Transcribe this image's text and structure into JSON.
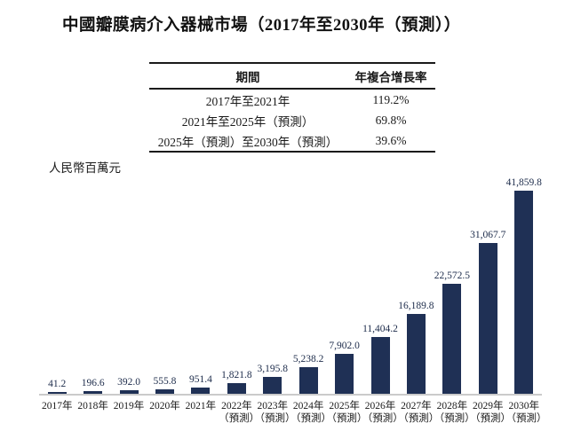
{
  "title": "中國瓣膜病介入器械市場（2017年至2030年（預測））",
  "cagr_table": {
    "headers": {
      "period": "期間",
      "cagr": "年複合增長率"
    },
    "rows": [
      {
        "period": "2017年至2021年",
        "cagr": "119.2%"
      },
      {
        "period": "2021年至2025年（預測）",
        "cagr": "69.8%"
      },
      {
        "period": "2025年（預測）至2030年（預測）",
        "cagr": "39.6%"
      }
    ]
  },
  "chart_data": {
    "type": "bar",
    "title": "中國瓣膜病介入器械市場（2017年至2030年（預測））",
    "ylabel": "人民幣百萬元",
    "ylim": [
      0,
      42000
    ],
    "grid": false,
    "legend": "none",
    "bar_color": "#1f3055",
    "forecast_suffix": "（預測）",
    "categories": [
      "2017年",
      "2018年",
      "2019年",
      "2020年",
      "2021年",
      "2022年（預測）",
      "2023年（預測）",
      "2024年（預測）",
      "2025年（預測）",
      "2026年（預測）",
      "2027年（預測）",
      "2028年（預測）",
      "2029年（預測）",
      "2030年（預測）"
    ],
    "values": [
      41.2,
      196.6,
      392.0,
      555.8,
      951.4,
      1821.8,
      3195.8,
      5238.2,
      7902.0,
      11404.2,
      16189.8,
      22572.5,
      31067.7,
      41859.8
    ],
    "value_labels": [
      "41.2",
      "196.6",
      "392.0",
      "555.8",
      "951.4",
      "1,821.8",
      "3,195.8",
      "5,238.2",
      "7,902.0",
      "11,404.2",
      "16,189.8",
      "22,572.5",
      "31,067.7",
      "41,859.8"
    ]
  }
}
